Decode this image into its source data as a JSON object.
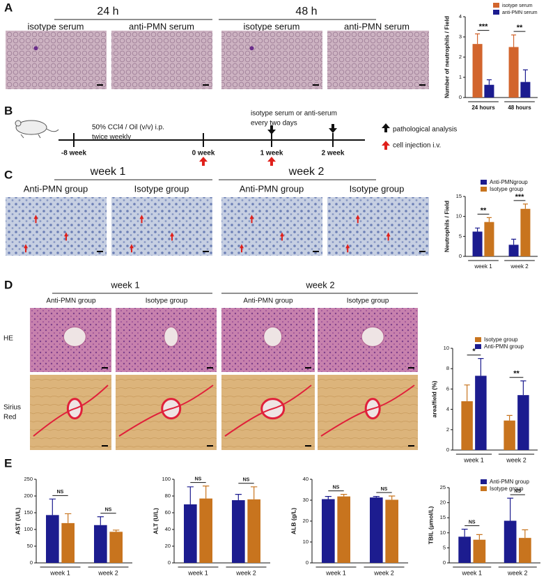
{
  "panels": {
    "A": {
      "letter": "A",
      "groups": [
        "24 h",
        "48 h"
      ],
      "image_labels": [
        "isotype serum",
        "anti-PMN serum",
        "isotype serum",
        "anti-PMN serum"
      ]
    },
    "B": {
      "letter": "B",
      "protocol": [
        "50% CCl4 / Oil (v/v) i.p.",
        "twice weekly"
      ],
      "treatment": [
        "isotype serum or anti-serum",
        "every two days"
      ],
      "timeline": [
        "-8 week",
        "0 week",
        "1 week",
        "2 week"
      ],
      "legend": [
        "pathological analysis",
        "cell injection i.v."
      ]
    },
    "C": {
      "letter": "C",
      "groups": [
        "week 1",
        "week 2"
      ],
      "image_labels": [
        "Anti-PMN group",
        "Isotype group",
        "Anti-PMN group",
        "Isotype group"
      ]
    },
    "D": {
      "letter": "D",
      "groups": [
        "week 1",
        "week 2"
      ],
      "image_labels": [
        "Anti-PMN group",
        "Isotype group",
        "Anti-PMN group",
        "Isotype group"
      ],
      "row_labels": [
        [
          "HE"
        ],
        [
          "Sirius",
          "Red"
        ]
      ]
    },
    "E": {
      "letter": "E"
    }
  },
  "chart_data": [
    {
      "type": "bar",
      "y_label": "Number of neutrophils / Field",
      "categories": [
        "24 hours",
        "48 hours"
      ],
      "series": [
        {
          "name": "isotype serum",
          "color": "#d2652d",
          "values": [
            2.65,
            2.5
          ],
          "errors": [
            0.5,
            0.6
          ]
        },
        {
          "name": "anti-PMN serum",
          "color": "#1c1c8f",
          "values": [
            0.63,
            0.77
          ],
          "errors": [
            0.25,
            0.6
          ]
        }
      ],
      "ylim": [
        0,
        4
      ],
      "yticks": [
        0,
        1,
        2,
        3,
        4
      ],
      "significance": [
        "***",
        "**"
      ],
      "legend": "top-right"
    },
    {
      "type": "bar",
      "y_label": "Neutrophils / Field",
      "categories": [
        "week 1",
        "week 2"
      ],
      "series": [
        {
          "name": "Anti-PMNgroup",
          "color": "#1c1c8f",
          "values": [
            6.2,
            2.9
          ],
          "errors": [
            0.9,
            1.4
          ]
        },
        {
          "name": "Isotype group",
          "color": "#c8741e",
          "values": [
            8.6,
            11.9
          ],
          "errors": [
            1.1,
            1.2
          ]
        }
      ],
      "ylim": [
        0,
        15
      ],
      "yticks": [
        0,
        5,
        10,
        15
      ],
      "significance": [
        "**",
        "***"
      ],
      "legend": "top-right"
    },
    {
      "type": "bar",
      "y_label": "area/field (%)",
      "categories": [
        "week 1",
        "week 2"
      ],
      "series": [
        {
          "name": "Isotype group",
          "color": "#c8741e",
          "values": [
            4.8,
            2.9
          ],
          "errors": [
            1.6,
            0.5
          ]
        },
        {
          "name": "Anti-PMN group",
          "color": "#1c1c8f",
          "values": [
            7.3,
            5.4
          ],
          "errors": [
            1.7,
            1.4
          ]
        }
      ],
      "ylim": [
        0,
        10
      ],
      "yticks": [
        0,
        2,
        4,
        6,
        8,
        10
      ],
      "significance": [
        "*",
        "**"
      ],
      "legend": "top-right"
    },
    {
      "type": "bar",
      "y_label": "AST (U/L)",
      "categories": [
        "week 1",
        "week 2"
      ],
      "series": [
        {
          "name": "Anti-PMN group",
          "color": "#1c1c8f",
          "values": [
            143,
            113
          ],
          "errors": [
            48,
            25
          ]
        },
        {
          "name": "Isotype group",
          "color": "#c8741e",
          "values": [
            119,
            93
          ],
          "errors": [
            28,
            5
          ]
        }
      ],
      "ylim": [
        0,
        250
      ],
      "yticks": [
        0,
        50,
        100,
        150,
        200,
        250
      ],
      "significance": [
        "NS",
        "NS"
      ]
    },
    {
      "type": "bar",
      "y_label": "ALT (U/L)",
      "categories": [
        "week 1",
        "week 2"
      ],
      "series": [
        {
          "name": "Anti-PMN group",
          "color": "#1c1c8f",
          "values": [
            70,
            75
          ],
          "errors": [
            21,
            7
          ]
        },
        {
          "name": "Isotype group",
          "color": "#c8741e",
          "values": [
            77,
            76
          ],
          "errors": [
            15,
            15
          ]
        }
      ],
      "ylim": [
        0,
        100
      ],
      "yticks": [
        0,
        20,
        40,
        60,
        80,
        100
      ],
      "significance": [
        "NS",
        "NS"
      ]
    },
    {
      "type": "bar",
      "y_label": "ALB (g/L)",
      "categories": [
        "week 1",
        "week 2"
      ],
      "series": [
        {
          "name": "Anti-PMN group",
          "color": "#1c1c8f",
          "values": [
            30.5,
            31.3
          ],
          "errors": [
            1.3,
            0.5
          ]
        },
        {
          "name": "Isotype group",
          "color": "#c8741e",
          "values": [
            31.8,
            30.2
          ],
          "errors": [
            1,
            1.8
          ]
        }
      ],
      "ylim": [
        0,
        40
      ],
      "yticks": [
        0,
        10,
        20,
        30,
        40
      ],
      "significance": [
        "NS",
        "NS"
      ]
    },
    {
      "type": "bar",
      "y_label": "TBIL (μmol/L)",
      "categories": [
        "week 1",
        "week 2"
      ],
      "series": [
        {
          "name": "Anti-PMN group",
          "color": "#1c1c8f",
          "values": [
            8.7,
            14
          ],
          "errors": [
            2.5,
            7.5
          ]
        },
        {
          "name": "Isotype group",
          "color": "#c8741e",
          "values": [
            7.7,
            8.3
          ],
          "errors": [
            1.7,
            2.7
          ]
        }
      ],
      "ylim": [
        0,
        25
      ],
      "yticks": [
        0,
        5,
        10,
        15,
        20,
        25
      ],
      "significance": [
        "NS",
        "NS"
      ],
      "legend": "top-right"
    }
  ]
}
